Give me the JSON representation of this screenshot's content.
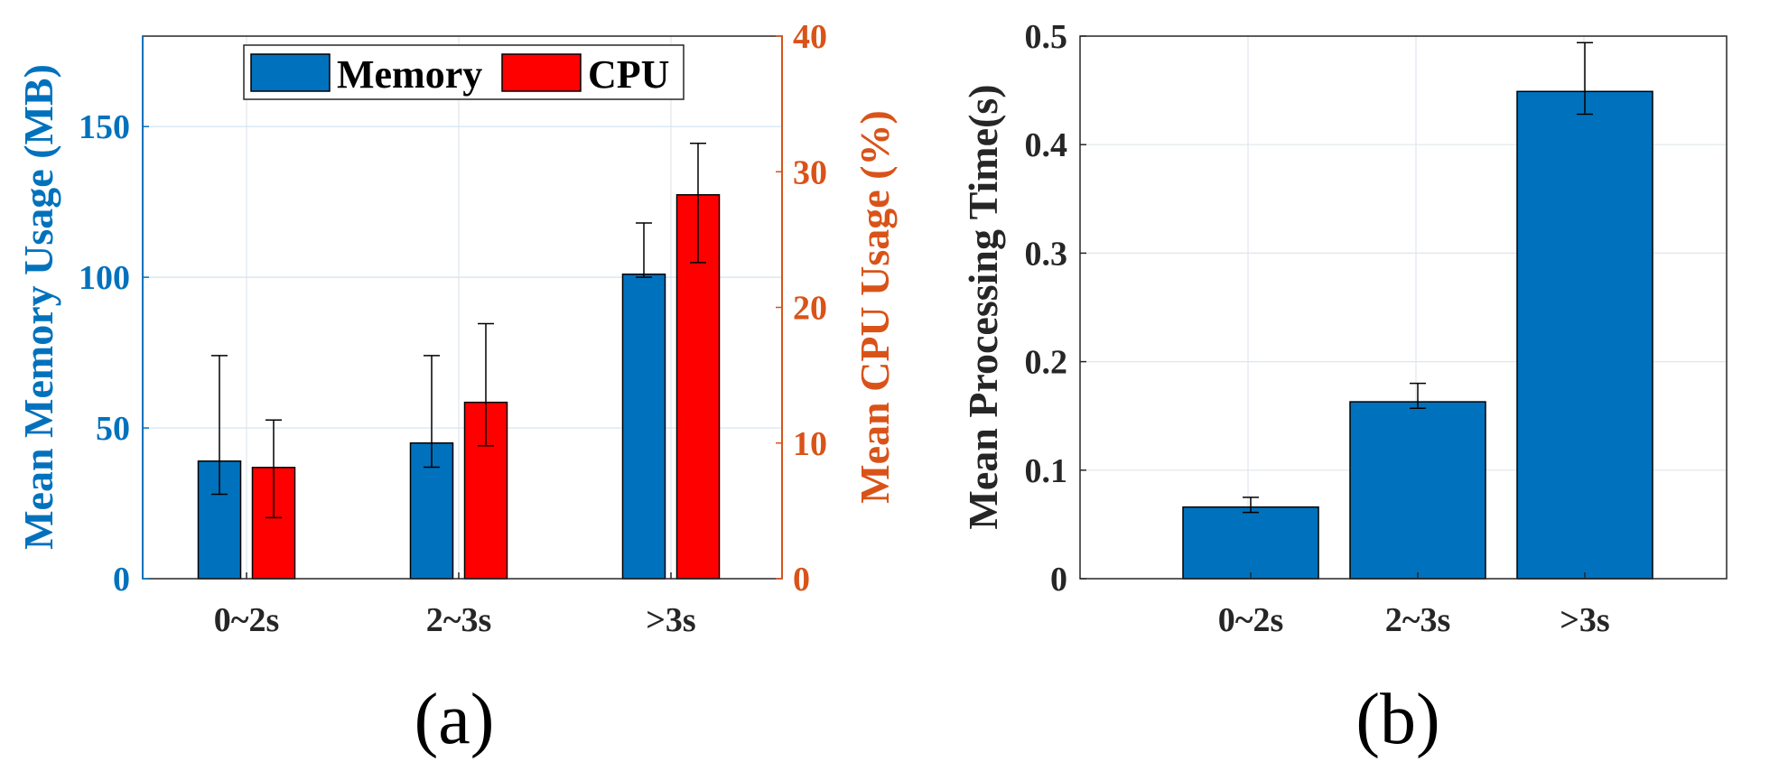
{
  "colors": {
    "memory": "#0072BD",
    "cpu": "#FF0000",
    "left_axis": "#0072BD",
    "right_axis": "#D95319",
    "axis_dark": "#262626",
    "grid": "#dfe6ec",
    "grid_blue": "#cfe3f3"
  },
  "chart_data": [
    {
      "type": "bar",
      "panel": "(a)",
      "categories": [
        "0~2s",
        "2~3s",
        ">3s"
      ],
      "series": [
        {
          "name": "Memory",
          "axis": "left",
          "values": [
            39,
            45,
            101
          ],
          "err_low": [
            28,
            37,
            100
          ],
          "err_high": [
            74,
            74,
            118
          ]
        },
        {
          "name": "CPU",
          "axis": "right",
          "values": [
            8.2,
            13,
            28.3
          ],
          "err_low": [
            4.5,
            9.8,
            23.3
          ],
          "err_high": [
            11.7,
            18.8,
            32.1
          ]
        }
      ],
      "ylabel_left": "Mean Memory Usage (MB)",
      "ylabel_right": "Mean CPU Usage (%)",
      "ylim_left": [
        0,
        180
      ],
      "ylim_right": [
        0,
        40
      ],
      "yticks_left": [
        0,
        50,
        100,
        150
      ],
      "yticks_right": [
        0,
        10,
        20,
        30,
        40
      ],
      "legend": [
        "Memory",
        "CPU"
      ],
      "legend_position": "top-center",
      "grid": true
    },
    {
      "type": "bar",
      "panel": "(b)",
      "categories": [
        "0~2s",
        "2~3s",
        ">3s"
      ],
      "series": [
        {
          "name": "Mean Processing Time",
          "values": [
            0.066,
            0.163,
            0.449
          ],
          "err_low": [
            0.061,
            0.157,
            0.428
          ],
          "err_high": [
            0.075,
            0.18,
            0.494
          ]
        }
      ],
      "ylabel": "Mean Processing Time(s)",
      "ylim": [
        0,
        0.5
      ],
      "yticks": [
        "0",
        "0.1",
        "0.2",
        "0.3",
        "0.4",
        "0.5"
      ],
      "grid": true
    }
  ]
}
